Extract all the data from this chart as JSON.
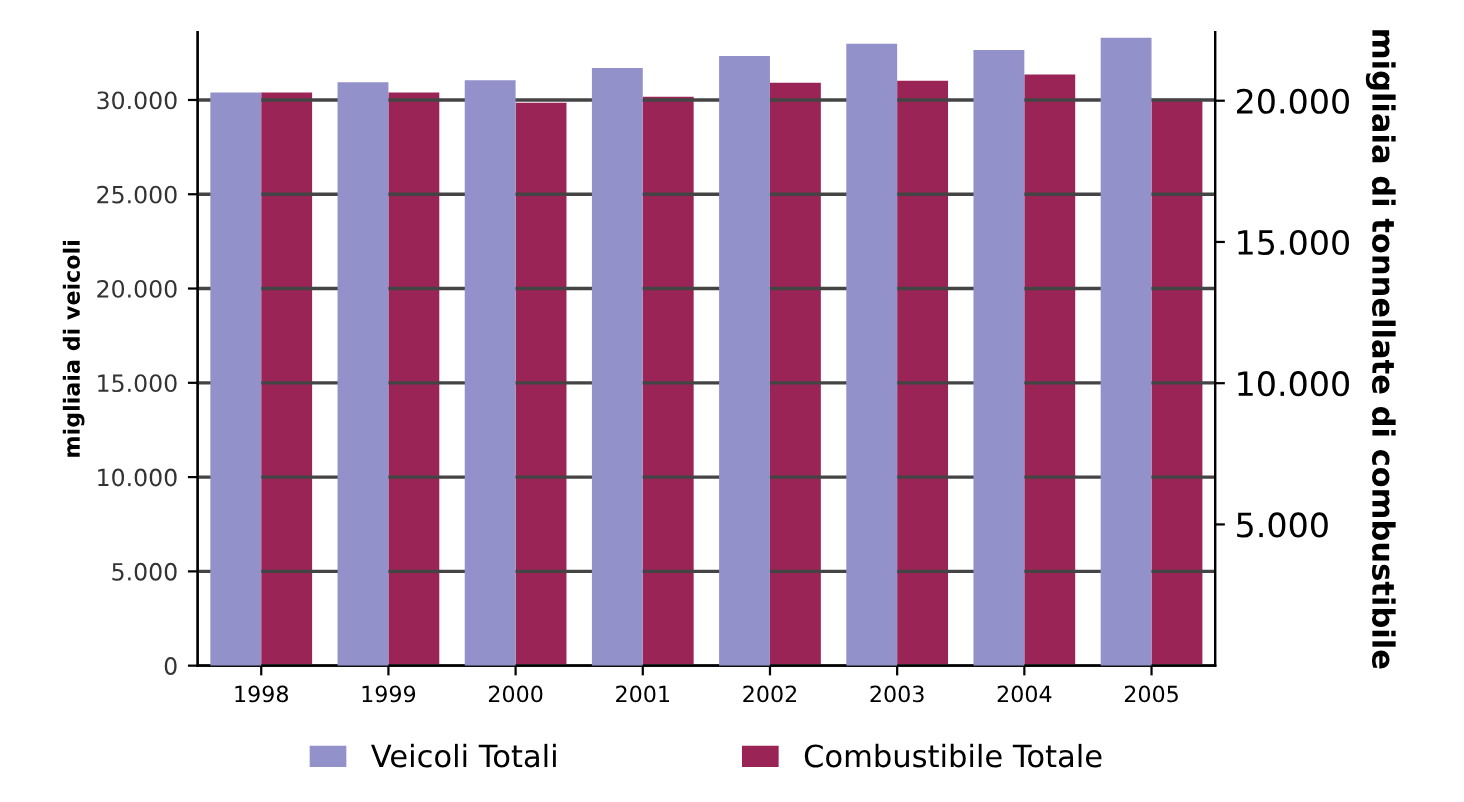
{
  "chart_data": {
    "type": "bar",
    "categories": [
      "1998",
      "1999",
      "2000",
      "2001",
      "2002",
      "2003",
      "2004",
      "2005"
    ],
    "ylabel": "migliaia di veicoli",
    "y2label": "migliaia di tonnellate di combustibile",
    "series": [
      {
        "name": "Veicoli Totali",
        "color": "#9391c9",
        "values": [
          30400,
          30940,
          31050,
          31690,
          32330,
          32980,
          32650,
          33300
        ]
      },
      {
        "name": "Combustibile Totale",
        "color": "#9b2457",
        "axis": "y2",
        "values": [
          20290,
          20290,
          19930,
          20140,
          20640,
          20710,
          20930,
          20070
        ]
      }
    ],
    "ylim": [
      0,
      33600
    ],
    "yticks": [
      0,
      {
        "value": 5000,
        "label": "5.000"
      },
      {
        "value": 10000,
        "label": "10.000"
      },
      {
        "value": 15000,
        "label": "15.000"
      },
      {
        "value": 20000,
        "label": "20.000"
      },
      {
        "value": 25000,
        "label": "25.000"
      },
      {
        "value": 30000,
        "label": "30.000"
      }
    ],
    "y2lim": [
      0,
      22430
    ],
    "y2ticks": [
      {
        "value": 5000,
        "label": "5.000"
      },
      {
        "value": 10000,
        "label": "10.000"
      },
      {
        "value": 15000,
        "label": "15.000"
      },
      {
        "value": 20000,
        "label": "20.000"
      }
    ],
    "grid": "y",
    "legend": "bottom"
  }
}
